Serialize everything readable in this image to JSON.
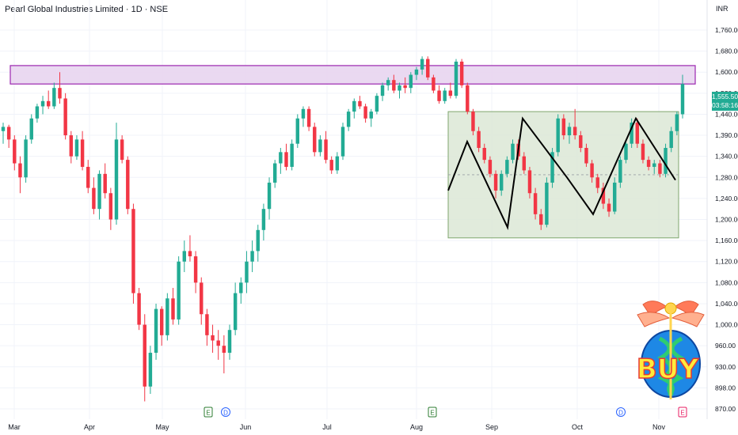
{
  "header": {
    "title": "Pearl Global Industries Limited · 1D · NSE",
    "currency": "INR"
  },
  "last_price": {
    "price": "1,555.50",
    "countdown": "03:58:16"
  },
  "colors": {
    "up": "#22ab94",
    "down": "#f23645",
    "zone_fill": "#e8d5ef",
    "zone_border": "#9c27b0",
    "range_fill": "#dce8d6",
    "range_border": "#7fa66e",
    "zigzag": "#000000",
    "earnings": "#2e7d32",
    "dividend": "#2962ff",
    "split": "#e91e63"
  },
  "logo": {
    "text": "BUY",
    "icon": "caduceus-globe-icon"
  },
  "chart_data": {
    "type": "candlestick",
    "ylim": [
      850,
      1800
    ],
    "y_ticks": [
      "1,760.00",
      "1,680.00",
      "1,600.00",
      "1,520.00",
      "1,440.00",
      "1,390.00",
      "1,340.00",
      "1,280.00",
      "1,240.00",
      "1,200.00",
      "1,160.00",
      "1,120.00",
      "1,080.00",
      "1,040.00",
      "1,000.00",
      "960.00",
      "930.00",
      "898.00",
      "870.00"
    ],
    "x_ticks": [
      "Mar",
      "Apr",
      "May",
      "Jun",
      "Jul",
      "Aug",
      "Sep",
      "Oct",
      "Nov"
    ],
    "events": [
      {
        "type": "earnings",
        "label": "E",
        "date": "May"
      },
      {
        "type": "dividend",
        "label": "D",
        "date": "May"
      },
      {
        "type": "earnings",
        "label": "E",
        "date": "Aug"
      },
      {
        "type": "dividend",
        "label": "D",
        "date": "Oct"
      },
      {
        "type": "split",
        "label": "E",
        "date": "Nov"
      }
    ],
    "resistance_zone": [
      1555,
      1625
    ],
    "range_box": [
      1165,
      1450
    ],
    "zigzag": [
      1255,
      1375,
      1185,
      1430,
      1280,
      1210,
      1430,
      1275
    ],
    "candles": [
      [
        1400,
        1420,
        1370,
        1410
      ],
      [
        1410,
        1415,
        1360,
        1380
      ],
      [
        1380,
        1390,
        1300,
        1320
      ],
      [
        1320,
        1340,
        1250,
        1280
      ],
      [
        1280,
        1390,
        1270,
        1380
      ],
      [
        1380,
        1440,
        1370,
        1430
      ],
      [
        1430,
        1480,
        1420,
        1470
      ],
      [
        1470,
        1510,
        1440,
        1490
      ],
      [
        1490,
        1530,
        1460,
        1470
      ],
      [
        1470,
        1560,
        1460,
        1540
      ],
      [
        1540,
        1600,
        1480,
        1500
      ],
      [
        1500,
        1520,
        1380,
        1390
      ],
      [
        1390,
        1400,
        1320,
        1340
      ],
      [
        1340,
        1390,
        1330,
        1380
      ],
      [
        1380,
        1400,
        1300,
        1310
      ],
      [
        1310,
        1330,
        1250,
        1260
      ],
      [
        1260,
        1280,
        1210,
        1220
      ],
      [
        1220,
        1300,
        1200,
        1290
      ],
      [
        1290,
        1320,
        1240,
        1250
      ],
      [
        1250,
        1260,
        1180,
        1200
      ],
      [
        1200,
        1420,
        1190,
        1380
      ],
      [
        1380,
        1390,
        1320,
        1330
      ],
      [
        1330,
        1340,
        1210,
        1220
      ],
      [
        1220,
        1230,
        1040,
        1060
      ],
      [
        1060,
        1070,
        990,
        1000
      ],
      [
        1000,
        1020,
        880,
        900
      ],
      [
        900,
        960,
        890,
        950
      ],
      [
        950,
        1040,
        940,
        1030
      ],
      [
        1030,
        1035,
        960,
        980
      ],
      [
        980,
        1060,
        970,
        1050
      ],
      [
        1050,
        1070,
        1000,
        1010
      ],
      [
        1010,
        1130,
        1000,
        1120
      ],
      [
        1120,
        1160,
        1100,
        1140
      ],
      [
        1140,
        1170,
        1120,
        1130
      ],
      [
        1130,
        1140,
        1060,
        1080
      ],
      [
        1080,
        1090,
        1000,
        1020
      ],
      [
        1020,
        1030,
        960,
        980
      ],
      [
        980,
        1000,
        950,
        970
      ],
      [
        970,
        990,
        940,
        960
      ],
      [
        960,
        980,
        920,
        950
      ],
      [
        950,
        1000,
        940,
        990
      ],
      [
        990,
        1080,
        980,
        1060
      ],
      [
        1060,
        1090,
        1040,
        1080
      ],
      [
        1080,
        1140,
        1060,
        1120
      ],
      [
        1120,
        1160,
        1100,
        1140
      ],
      [
        1140,
        1190,
        1120,
        1180
      ],
      [
        1180,
        1230,
        1160,
        1220
      ],
      [
        1220,
        1280,
        1200,
        1270
      ],
      [
        1270,
        1330,
        1260,
        1320
      ],
      [
        1320,
        1360,
        1290,
        1350
      ],
      [
        1350,
        1370,
        1300,
        1310
      ],
      [
        1310,
        1380,
        1300,
        1370
      ],
      [
        1370,
        1440,
        1360,
        1430
      ],
      [
        1430,
        1470,
        1410,
        1460
      ],
      [
        1460,
        1470,
        1400,
        1410
      ],
      [
        1410,
        1420,
        1340,
        1350
      ],
      [
        1350,
        1390,
        1340,
        1380
      ],
      [
        1380,
        1400,
        1320,
        1330
      ],
      [
        1330,
        1340,
        1290,
        1300
      ],
      [
        1300,
        1350,
        1290,
        1340
      ],
      [
        1340,
        1420,
        1330,
        1410
      ],
      [
        1410,
        1460,
        1400,
        1450
      ],
      [
        1450,
        1500,
        1430,
        1490
      ],
      [
        1490,
        1510,
        1460,
        1470
      ],
      [
        1470,
        1480,
        1420,
        1430
      ],
      [
        1430,
        1460,
        1410,
        1450
      ],
      [
        1450,
        1520,
        1440,
        1510
      ],
      [
        1510,
        1560,
        1490,
        1550
      ],
      [
        1550,
        1580,
        1530,
        1570
      ],
      [
        1570,
        1590,
        1520,
        1530
      ],
      [
        1530,
        1560,
        1500,
        1550
      ],
      [
        1550,
        1580,
        1520,
        1540
      ],
      [
        1540,
        1600,
        1520,
        1590
      ],
      [
        1590,
        1620,
        1570,
        1610
      ],
      [
        1610,
        1660,
        1590,
        1650
      ],
      [
        1650,
        1660,
        1570,
        1580
      ],
      [
        1580,
        1590,
        1520,
        1530
      ],
      [
        1530,
        1550,
        1480,
        1490
      ],
      [
        1490,
        1540,
        1480,
        1530
      ],
      [
        1530,
        1560,
        1500,
        1510
      ],
      [
        1510,
        1650,
        1500,
        1640
      ],
      [
        1640,
        1650,
        1540,
        1550
      ],
      [
        1550,
        1560,
        1440,
        1450
      ],
      [
        1450,
        1460,
        1390,
        1400
      ],
      [
        1400,
        1410,
        1350,
        1360
      ],
      [
        1360,
        1370,
        1320,
        1330
      ],
      [
        1330,
        1340,
        1280,
        1290
      ],
      [
        1290,
        1300,
        1240,
        1255
      ],
      [
        1255,
        1300,
        1245,
        1290
      ],
      [
        1290,
        1340,
        1280,
        1330
      ],
      [
        1330,
        1380,
        1320,
        1370
      ],
      [
        1370,
        1380,
        1330,
        1340
      ],
      [
        1340,
        1350,
        1290,
        1300
      ],
      [
        1300,
        1310,
        1240,
        1250
      ],
      [
        1250,
        1260,
        1200,
        1210
      ],
      [
        1210,
        1220,
        1180,
        1190
      ],
      [
        1190,
        1280,
        1185,
        1270
      ],
      [
        1270,
        1360,
        1260,
        1350
      ],
      [
        1350,
        1440,
        1340,
        1430
      ],
      [
        1430,
        1440,
        1380,
        1390
      ],
      [
        1390,
        1420,
        1370,
        1410
      ],
      [
        1410,
        1460,
        1380,
        1390
      ],
      [
        1390,
        1400,
        1350,
        1360
      ],
      [
        1360,
        1370,
        1310,
        1320
      ],
      [
        1320,
        1330,
        1270,
        1280
      ],
      [
        1280,
        1290,
        1250,
        1260
      ],
      [
        1260,
        1270,
        1220,
        1230
      ],
      [
        1230,
        1240,
        1205,
        1215
      ],
      [
        1215,
        1280,
        1210,
        1270
      ],
      [
        1270,
        1340,
        1260,
        1330
      ],
      [
        1330,
        1380,
        1320,
        1370
      ],
      [
        1370,
        1430,
        1360,
        1420
      ],
      [
        1420,
        1430,
        1360,
        1370
      ],
      [
        1370,
        1380,
        1320,
        1330
      ],
      [
        1330,
        1340,
        1300,
        1310
      ],
      [
        1310,
        1330,
        1290,
        1320
      ],
      [
        1320,
        1330,
        1280,
        1290
      ],
      [
        1290,
        1370,
        1280,
        1360
      ],
      [
        1360,
        1410,
        1350,
        1400
      ],
      [
        1400,
        1450,
        1390,
        1440
      ],
      [
        1440,
        1590,
        1430,
        1555
      ]
    ]
  }
}
